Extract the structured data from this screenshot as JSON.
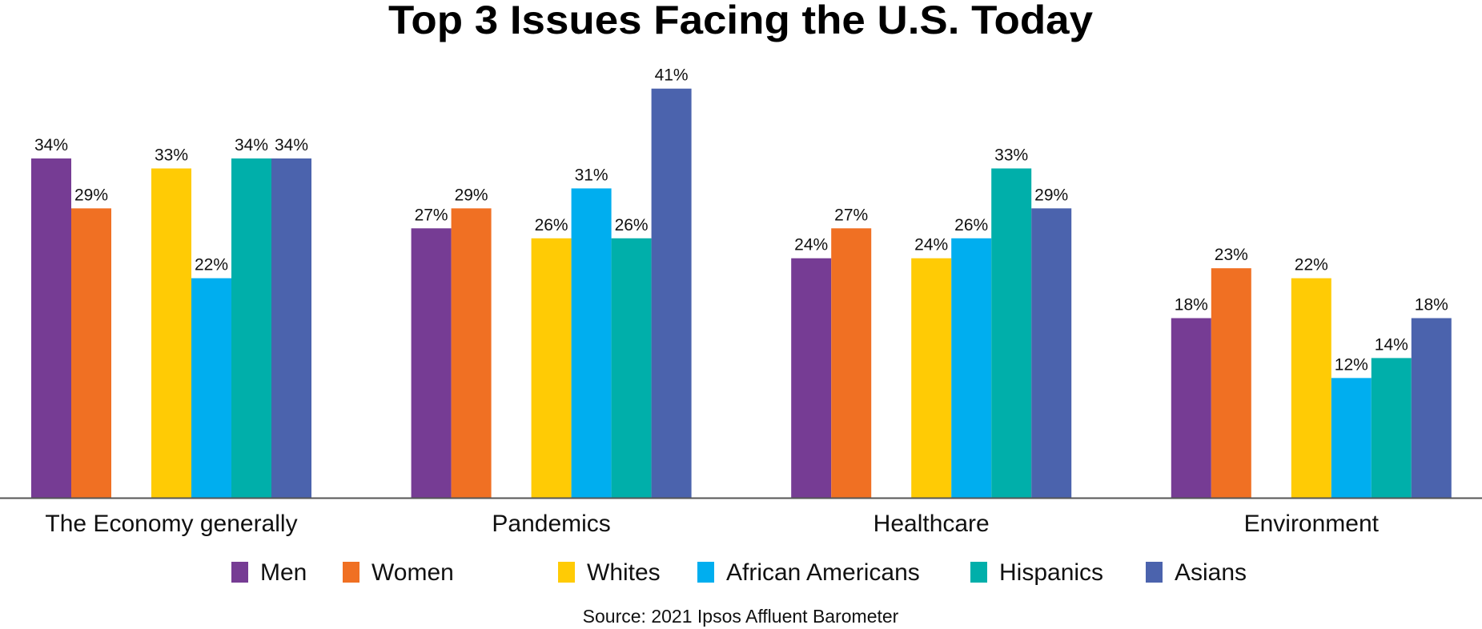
{
  "chart_data": {
    "type": "bar",
    "title": "Top 3 Issues Facing the U.S. Today",
    "source": "Source: 2021 Ipsos Affluent Barometer",
    "categories": [
      "The Economy generally",
      "Pandemics",
      "Healthcare",
      "Environment"
    ],
    "series": [
      {
        "name": "Men",
        "color": "#763C94",
        "values": [
          34,
          27,
          24,
          18
        ]
      },
      {
        "name": "Women",
        "color": "#F07023",
        "values": [
          29,
          29,
          27,
          23
        ]
      },
      {
        "name": "Whites",
        "color": "#FFCB05",
        "values": [
          33,
          26,
          24,
          22
        ]
      },
      {
        "name": "African Americans",
        "color": "#00AEEF",
        "values": [
          22,
          31,
          26,
          12
        ]
      },
      {
        "name": "Hispanics",
        "color": "#00AFAA",
        "values": [
          34,
          26,
          33,
          14
        ]
      },
      {
        "name": "Asians",
        "color": "#4B63AD",
        "values": [
          34,
          41,
          29,
          18
        ]
      }
    ],
    "value_format": "%",
    "ylim": [
      0,
      41
    ],
    "grid": false,
    "legend_placement": "bottom"
  }
}
